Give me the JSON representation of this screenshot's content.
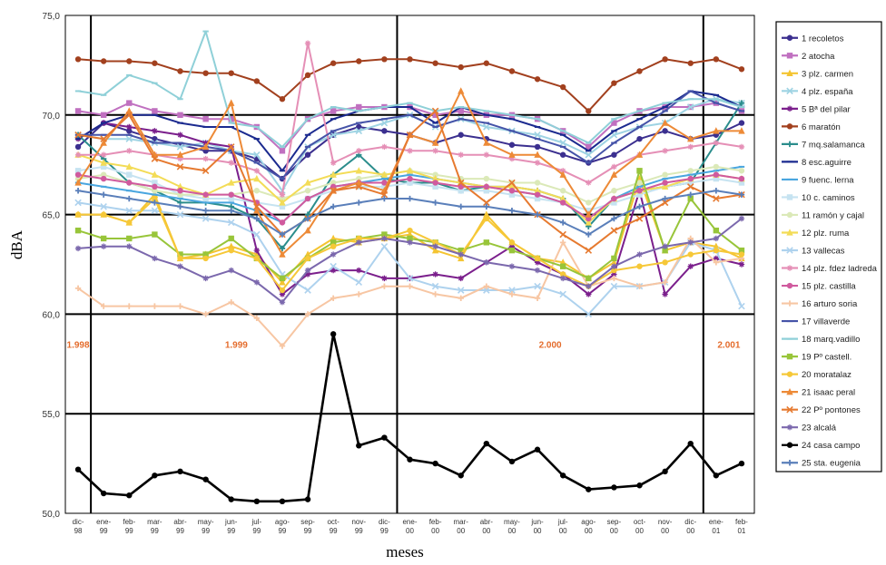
{
  "chart_data": {
    "type": "line",
    "xlabel": "meses",
    "ylabel": "dBA",
    "ylim": [
      50,
      75
    ],
    "yticks": [
      "50,0",
      "55,0",
      "60,0",
      "65,0",
      "70,0",
      "75,0"
    ],
    "grid": "horizontal lines at 55, 60, 65, 70",
    "categories": [
      "dic-98",
      "ene-99",
      "feb-99",
      "mar-99",
      "abr-99",
      "may-99",
      "jun-99",
      "jul-99",
      "ago-99",
      "sep-99",
      "oct-99",
      "nov-99",
      "dic-99",
      "ene-00",
      "feb-00",
      "mar-00",
      "abr-00",
      "may-00",
      "jun-00",
      "jul-00",
      "ago-00",
      "sep-00",
      "oct-00",
      "nov-00",
      "dic-00",
      "ene-01",
      "feb-01"
    ],
    "xtick_top": [
      "dic-",
      "ene-",
      "feb-",
      "mar-",
      "abr-",
      "may-",
      "jun-",
      "jul-",
      "ago-",
      "sep-",
      "oct-",
      "nov-",
      "dic-",
      "ene-",
      "feb-",
      "mar-",
      "abr-",
      "may-",
      "jun-",
      "jul-",
      "ago-",
      "sep-",
      "oct-",
      "nov-",
      "dic-",
      "ene-",
      "feb-"
    ],
    "xtick_bottom": [
      "98",
      "99",
      "99",
      "99",
      "99",
      "99",
      "99",
      "99",
      "99",
      "99",
      "99",
      "99",
      "99",
      "00",
      "00",
      "00",
      "00",
      "00",
      "00",
      "00",
      "00",
      "00",
      "00",
      "00",
      "00",
      "01",
      "01"
    ],
    "year_labels": [
      {
        "text": "1.998",
        "at": 0
      },
      {
        "text": "1.999",
        "at": 6.2
      },
      {
        "text": "2.000",
        "at": 18.5
      },
      {
        "text": "2.001",
        "at": 25.5
      }
    ],
    "year_separators": [
      0.5,
      12.5,
      24.5
    ],
    "legend_position": "right",
    "series": [
      {
        "name": "1  recoletos",
        "color": "#3b2f8f",
        "marker": "circle",
        "values": [
          68.4,
          69.6,
          69.2,
          68.8,
          68.5,
          68.2,
          68.2,
          67.8,
          66.8,
          68.0,
          69.0,
          69.4,
          69.2,
          69.0,
          68.6,
          69.0,
          68.8,
          68.5,
          68.4,
          68.0,
          67.6,
          68.0,
          68.8,
          69.2,
          68.8,
          69.0,
          69.6
        ]
      },
      {
        "name": "2  atocha",
        "color": "#c070c0",
        "marker": "square",
        "values": [
          70.2,
          70.0,
          70.6,
          70.2,
          70.0,
          69.8,
          69.8,
          69.4,
          68.2,
          69.8,
          70.2,
          70.4,
          70.4,
          70.4,
          70.0,
          70.2,
          70.0,
          70.0,
          69.8,
          69.2,
          68.4,
          69.6,
          70.2,
          70.4,
          70.4,
          70.6,
          70.2
        ]
      },
      {
        "name": "3 plz. carmen",
        "color": "#f4c431",
        "marker": "triangle",
        "values": [
          65.0,
          65.0,
          64.6,
          66.0,
          62.8,
          63.0,
          63.4,
          63.0,
          61.6,
          63.0,
          63.8,
          63.6,
          63.8,
          64.0,
          63.2,
          62.8,
          65.0,
          63.6,
          62.8,
          62.6,
          61.8,
          62.6,
          66.8,
          63.2,
          63.6,
          63.4,
          62.8
        ]
      },
      {
        "name": "4 plz. españa",
        "color": "#9ed3e3",
        "marker": "x",
        "values": [
          69.0,
          68.8,
          68.8,
          68.6,
          68.4,
          68.6,
          68.2,
          68.0,
          66.2,
          68.4,
          69.0,
          69.2,
          69.6,
          70.0,
          69.4,
          69.8,
          69.4,
          69.2,
          69.0,
          68.6,
          68.0,
          69.0,
          69.4,
          69.6,
          70.4,
          70.8,
          70.6
        ]
      },
      {
        "name": "5  Bª del pilar",
        "color": "#7b1f8c",
        "marker": "star",
        "values": [
          68.8,
          69.6,
          69.4,
          69.2,
          69.0,
          68.6,
          68.4,
          63.2,
          61.0,
          62.0,
          62.2,
          62.2,
          61.8,
          61.8,
          62.0,
          61.8,
          62.6,
          63.4,
          62.6,
          62.0,
          61.0,
          62.0,
          66.2,
          61.0,
          62.4,
          62.8,
          62.5
        ]
      },
      {
        "name": "6  maratón",
        "color": "#a2401e",
        "marker": "circle",
        "values": [
          72.8,
          72.7,
          72.7,
          72.6,
          72.2,
          72.1,
          72.1,
          71.7,
          70.8,
          72.0,
          72.6,
          72.7,
          72.8,
          72.8,
          72.6,
          72.4,
          72.6,
          72.2,
          71.8,
          71.4,
          70.2,
          71.6,
          72.2,
          72.8,
          72.6,
          72.8,
          72.3
        ]
      },
      {
        "name": "7 mq.salamanca",
        "color": "#2b8d8c",
        "marker": "plus",
        "values": [
          69.0,
          67.8,
          66.6,
          66.2,
          65.6,
          65.6,
          65.4,
          64.8,
          63.3,
          65.0,
          67.0,
          68.0,
          66.8,
          66.6,
          66.6,
          66.2,
          66.4,
          66.4,
          66.2,
          65.8,
          64.4,
          65.8,
          66.2,
          66.4,
          66.6,
          68.6,
          70.6
        ]
      },
      {
        "name": "8 esc.aguirre",
        "color": "#1b2a8f",
        "marker": "dash",
        "values": [
          68.8,
          69.6,
          70.0,
          70.0,
          69.6,
          69.4,
          69.4,
          68.8,
          67.2,
          69.0,
          69.8,
          70.2,
          70.4,
          70.4,
          69.6,
          70.4,
          70.0,
          69.8,
          69.4,
          69.0,
          68.2,
          69.2,
          69.8,
          70.4,
          71.2,
          71.0,
          70.4
        ]
      },
      {
        "name": "9 fuenc. lerna",
        "color": "#4aa6df",
        "marker": "dash",
        "values": [
          66.6,
          66.4,
          66.2,
          66.0,
          65.8,
          65.6,
          65.6,
          65.2,
          64.6,
          65.8,
          66.4,
          66.6,
          66.8,
          67.0,
          66.8,
          66.6,
          66.4,
          66.2,
          66.0,
          65.6,
          64.8,
          65.8,
          66.4,
          66.8,
          67.0,
          67.2,
          67.4
        ]
      },
      {
        "name": "10  c. caminos",
        "color": "#c6e3f1",
        "marker": "square",
        "values": [
          67.2,
          67.4,
          67.0,
          66.6,
          66.0,
          65.8,
          65.8,
          65.6,
          65.4,
          65.8,
          66.2,
          66.4,
          66.4,
          66.6,
          66.4,
          66.2,
          66.2,
          66.0,
          65.8,
          65.6,
          65.2,
          65.6,
          66.0,
          66.4,
          66.6,
          66.8,
          66.6
        ]
      },
      {
        "name": "11 ramón y cajal",
        "color": "#dbe9b8",
        "marker": "circle",
        "values": [
          66.8,
          67.0,
          66.6,
          66.2,
          66.0,
          66.0,
          66.0,
          66.2,
          65.8,
          66.2,
          66.6,
          66.8,
          67.0,
          67.2,
          67.0,
          66.8,
          66.8,
          66.6,
          66.6,
          66.2,
          65.6,
          66.2,
          66.6,
          67.0,
          67.2,
          67.4,
          67.2
        ]
      },
      {
        "name": "12  plz. ruma",
        "color": "#f3dc57",
        "marker": "triangle",
        "values": [
          68.0,
          67.6,
          67.4,
          67.0,
          66.4,
          66.0,
          66.6,
          66.8,
          65.6,
          66.6,
          67.0,
          67.2,
          67.0,
          67.2,
          66.8,
          66.6,
          66.4,
          66.4,
          66.2,
          65.8,
          64.6,
          65.8,
          66.2,
          66.4,
          66.8,
          67.0,
          66.8
        ]
      },
      {
        "name": "13  vallecas",
        "color": "#aed2ee",
        "marker": "x",
        "values": [
          65.6,
          65.4,
          65.2,
          65.2,
          65.0,
          64.8,
          64.6,
          64.0,
          62.0,
          61.2,
          62.4,
          61.6,
          63.4,
          61.8,
          61.4,
          61.2,
          61.2,
          61.2,
          61.4,
          61.0,
          60.0,
          61.4,
          61.4,
          61.6,
          63.6,
          63.2,
          60.4
        ]
      },
      {
        "name": "14 plz. fdez ladreda",
        "color": "#e58fb6",
        "marker": "star",
        "values": [
          68.0,
          68.0,
          68.2,
          68.0,
          67.8,
          67.8,
          67.6,
          67.2,
          66.0,
          73.6,
          67.6,
          68.2,
          68.4,
          68.2,
          68.2,
          68.0,
          68.0,
          67.8,
          67.6,
          67.2,
          66.6,
          67.4,
          68.0,
          68.2,
          68.4,
          68.6,
          68.4
        ]
      },
      {
        "name": "15  plz. castilla",
        "color": "#d05a9e",
        "marker": "circle",
        "values": [
          67.0,
          66.8,
          66.6,
          66.4,
          66.2,
          66.0,
          66.0,
          65.6,
          64.6,
          65.8,
          66.4,
          66.6,
          66.6,
          66.8,
          66.6,
          66.4,
          66.4,
          66.2,
          66.0,
          65.6,
          64.8,
          65.8,
          66.2,
          66.6,
          66.8,
          67.0,
          66.8
        ]
      },
      {
        "name": "16 arturo soria",
        "color": "#f7c6a3",
        "marker": "plus",
        "values": [
          61.3,
          60.4,
          60.4,
          60.4,
          60.4,
          60.0,
          60.6,
          59.8,
          58.4,
          60.0,
          60.8,
          61.0,
          61.4,
          61.4,
          61.0,
          60.8,
          61.4,
          61.0,
          60.8,
          63.6,
          61.4,
          61.8,
          61.4,
          61.6,
          63.8,
          62.6,
          62.8
        ]
      },
      {
        "name": "17  villaverde",
        "color": "#4553a8",
        "marker": "dash",
        "values": [
          69.0,
          69.0,
          69.0,
          68.6,
          68.6,
          68.4,
          68.2,
          67.6,
          66.8,
          68.4,
          69.2,
          69.6,
          69.8,
          70.0,
          69.4,
          69.8,
          69.6,
          69.2,
          68.8,
          68.4,
          67.6,
          68.6,
          69.4,
          70.2,
          71.2,
          70.6,
          70.2
        ]
      },
      {
        "name": "18 marq.vadillo",
        "color": "#8fd0d8",
        "marker": "dash",
        "values": [
          71.2,
          71.0,
          72.0,
          71.6,
          70.8,
          74.2,
          69.6,
          69.4,
          68.4,
          69.8,
          70.4,
          70.2,
          70.4,
          70.6,
          70.2,
          70.4,
          70.2,
          70.0,
          69.8,
          69.2,
          68.6,
          69.8,
          70.2,
          70.6,
          70.8,
          70.8,
          70.4
        ]
      },
      {
        "name": "19  Pº castell.",
        "color": "#98c53a",
        "marker": "square",
        "values": [
          64.2,
          63.8,
          63.8,
          64.0,
          63.0,
          63.0,
          63.8,
          62.8,
          61.8,
          62.8,
          63.6,
          63.8,
          64.0,
          63.8,
          63.6,
          63.2,
          63.6,
          63.2,
          62.8,
          62.4,
          61.8,
          62.8,
          67.2,
          63.2,
          65.8,
          64.2,
          63.2
        ]
      },
      {
        "name": "20  moratalaz",
        "color": "#f6c838",
        "marker": "circle",
        "values": [
          65.0,
          65.0,
          64.6,
          65.8,
          62.8,
          62.8,
          63.2,
          62.8,
          61.2,
          62.8,
          63.4,
          63.8,
          63.8,
          64.2,
          63.6,
          63.0,
          64.8,
          63.6,
          62.8,
          62.0,
          61.4,
          62.2,
          62.4,
          62.6,
          63.0,
          63.2,
          63.0
        ]
      },
      {
        "name": "21 isaac peral",
        "color": "#ed8a37",
        "marker": "triangle",
        "values": [
          66.6,
          68.6,
          70.2,
          68.0,
          68.0,
          68.4,
          70.6,
          65.2,
          63.0,
          64.2,
          66.2,
          66.6,
          66.2,
          69.0,
          68.6,
          71.2,
          68.6,
          68.0,
          68.0,
          67.0,
          65.0,
          67.0,
          68.0,
          69.6,
          68.8,
          69.2,
          69.2
        ]
      },
      {
        "name": "22 Pº pontones",
        "color": "#e67a30",
        "marker": "x",
        "values": [
          69.0,
          68.8,
          70.0,
          67.8,
          67.4,
          67.2,
          68.4,
          65.4,
          64.0,
          64.8,
          66.2,
          66.4,
          66.0,
          69.0,
          70.2,
          66.6,
          65.6,
          66.6,
          65.0,
          64.0,
          63.2,
          64.2,
          64.8,
          65.6,
          66.4,
          65.8,
          66.0
        ]
      },
      {
        "name": "23  alcalá",
        "color": "#7b68ad",
        "marker": "star",
        "values": [
          63.3,
          63.4,
          63.4,
          62.8,
          62.4,
          61.8,
          62.2,
          61.6,
          60.6,
          62.2,
          63.0,
          63.6,
          63.8,
          63.6,
          63.4,
          63.0,
          62.6,
          62.4,
          62.2,
          61.8,
          61.4,
          62.4,
          63.0,
          63.4,
          63.6,
          63.8,
          64.8
        ]
      },
      {
        "name": "24 casa campo",
        "color": "#000000",
        "marker": "circle",
        "values": [
          52.2,
          51.0,
          50.9,
          51.9,
          52.1,
          51.7,
          50.7,
          50.6,
          50.6,
          50.7,
          59.0,
          53.4,
          53.8,
          52.7,
          52.5,
          51.9,
          53.5,
          52.6,
          53.2,
          51.9,
          51.2,
          51.3,
          51.4,
          52.1,
          53.5,
          51.9,
          52.5
        ]
      },
      {
        "name": "25 sta. eugenia",
        "color": "#5a7fba",
        "marker": "plus",
        "values": [
          66.2,
          66.0,
          65.8,
          65.6,
          65.4,
          65.2,
          65.2,
          64.8,
          64.0,
          64.8,
          65.4,
          65.6,
          65.8,
          65.8,
          65.6,
          65.4,
          65.4,
          65.2,
          65.0,
          64.6,
          64.0,
          64.8,
          65.4,
          65.8,
          66.0,
          66.2,
          66.0
        ]
      }
    ]
  }
}
